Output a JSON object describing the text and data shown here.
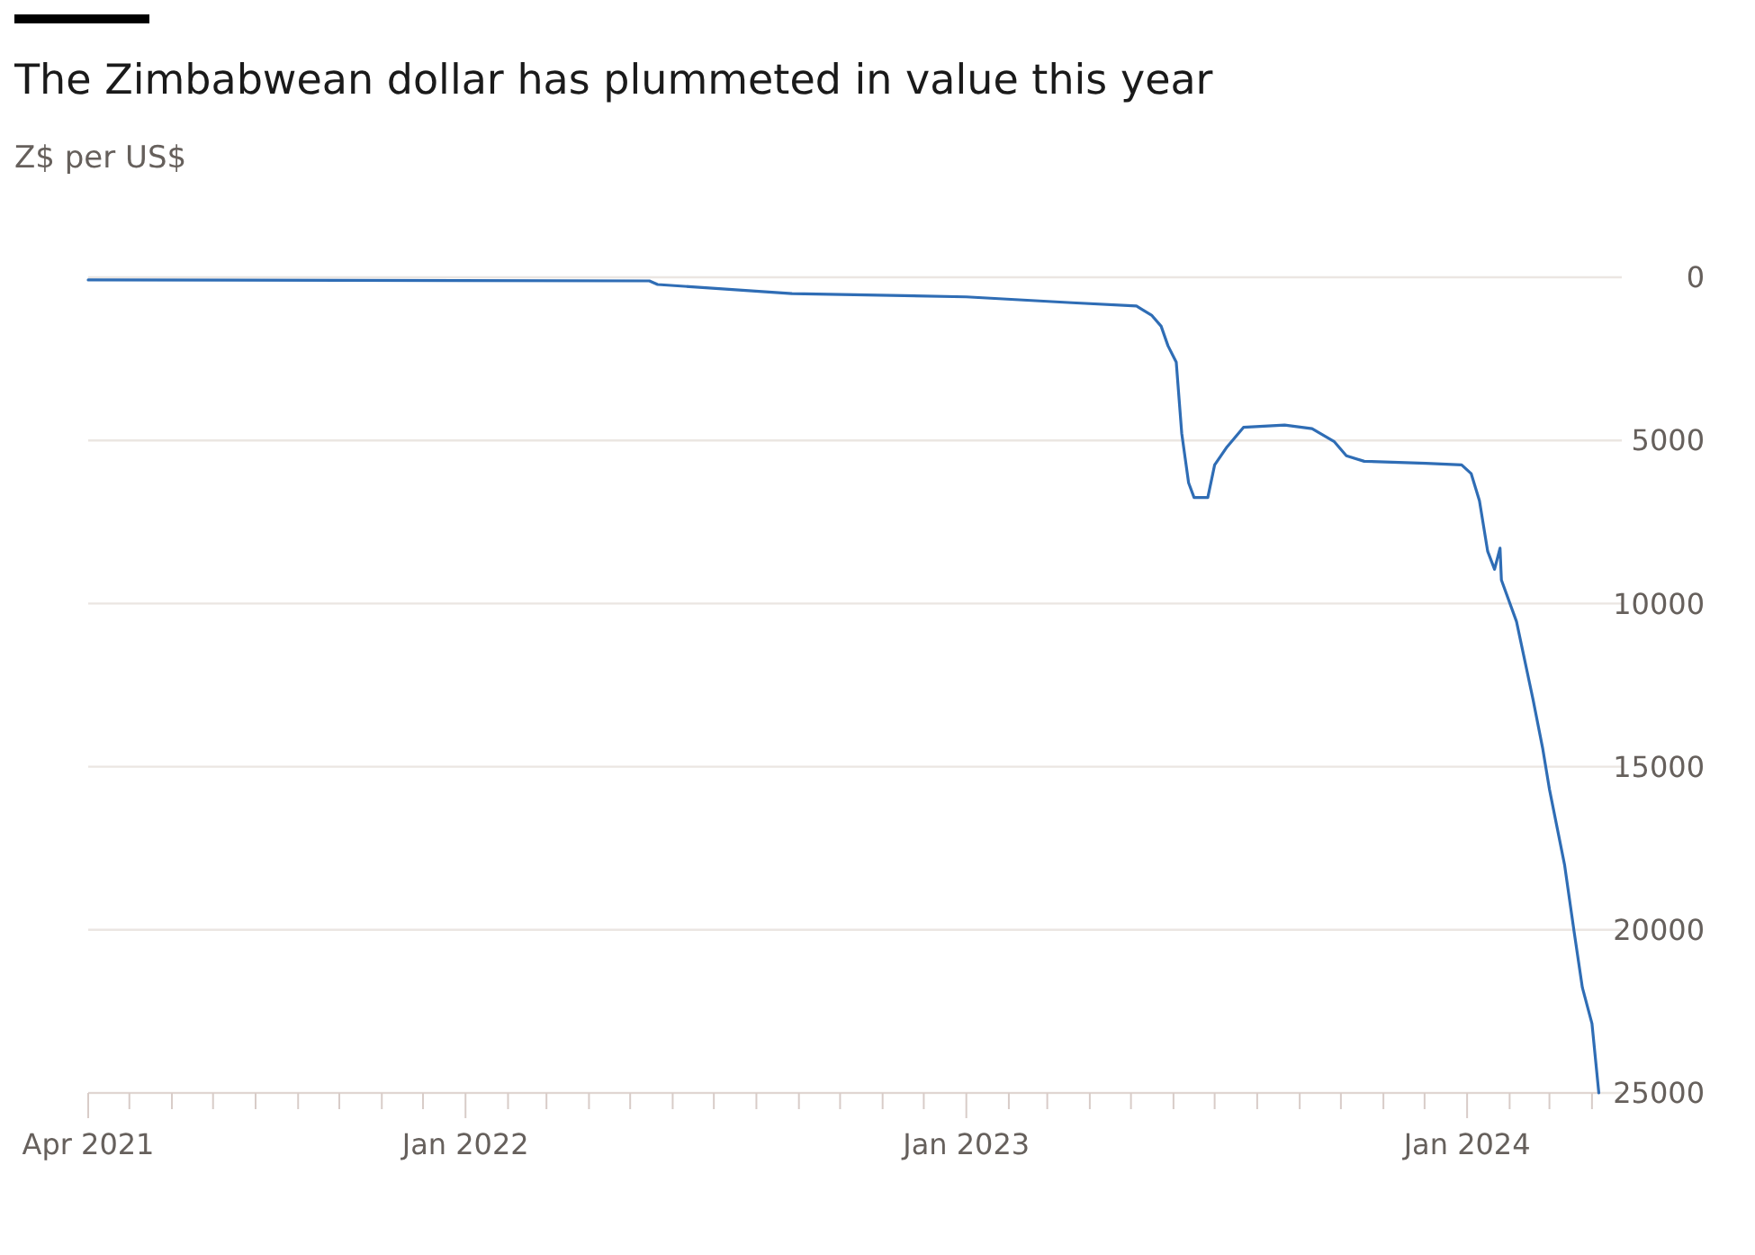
{
  "chart_data": {
    "type": "line",
    "title": "The Zimbabwean dollar has plummeted in value this year",
    "subtitle": "Z$ per US$",
    "x": [
      "2021-04-01",
      "2022-05-15",
      "2022-05-21",
      "2022-08-27",
      "2023-01-01",
      "2023-03-19",
      "2023-05-05",
      "2023-05-16",
      "2023-05-23",
      "2023-05-28",
      "2023-06-03",
      "2023-06-07",
      "2023-06-12",
      "2023-06-16",
      "2023-06-26",
      "2023-07-01",
      "2023-07-10",
      "2023-07-22",
      "2023-08-21",
      "2023-09-10",
      "2023-09-26",
      "2023-10-05",
      "2023-10-18",
      "2023-12-02",
      "2023-12-28",
      "2024-01-04",
      "2024-01-10",
      "2024-01-16",
      "2024-01-21",
      "2024-01-25",
      "2024-01-26",
      "2024-02-06",
      "2024-02-18",
      "2024-02-25",
      "2024-03-01",
      "2024-03-12",
      "2024-03-19",
      "2024-03-25",
      "2024-04-01",
      "2024-04-06"
    ],
    "series": [
      {
        "color": "#2f6db5",
        "values": [
          80,
          110,
          220,
          500,
          600,
          780,
          880,
          1160,
          1500,
          2100,
          2600,
          4780,
          6300,
          6750,
          6750,
          5750,
          5200,
          4600,
          4530,
          4640,
          5030,
          5470,
          5640,
          5700,
          5750,
          6020,
          6850,
          8400,
          8950,
          8300,
          9280,
          10550,
          12930,
          14420,
          15690,
          18000,
          20060,
          21770,
          22870,
          25000
        ]
      }
    ],
    "xlim": [
      "2021-04-01",
      "2024-04-07"
    ],
    "xticks": [
      {
        "value": "2021-04-01",
        "label": "Apr 2021"
      },
      {
        "value": "2021-05-01",
        "label": null
      },
      {
        "value": "2021-06-01",
        "label": null
      },
      {
        "value": "2021-07-01",
        "label": null
      },
      {
        "value": "2021-08-01",
        "label": null
      },
      {
        "value": "2021-09-01",
        "label": null
      },
      {
        "value": "2021-10-01",
        "label": null
      },
      {
        "value": "2021-11-01",
        "label": null
      },
      {
        "value": "2021-12-01",
        "label": null
      },
      {
        "value": "2022-01-01",
        "label": "Jan 2022"
      },
      {
        "value": "2022-02-01",
        "label": null
      },
      {
        "value": "2022-03-01",
        "label": null
      },
      {
        "value": "2022-04-01",
        "label": null
      },
      {
        "value": "2022-05-01",
        "label": null
      },
      {
        "value": "2022-06-01",
        "label": null
      },
      {
        "value": "2022-07-01",
        "label": null
      },
      {
        "value": "2022-08-01",
        "label": null
      },
      {
        "value": "2022-09-01",
        "label": null
      },
      {
        "value": "2022-10-01",
        "label": null
      },
      {
        "value": "2022-11-01",
        "label": null
      },
      {
        "value": "2022-12-01",
        "label": null
      },
      {
        "value": "2023-01-01",
        "label": "Jan 2023"
      },
      {
        "value": "2023-02-01",
        "label": null
      },
      {
        "value": "2023-03-01",
        "label": null
      },
      {
        "value": "2023-04-01",
        "label": null
      },
      {
        "value": "2023-05-01",
        "label": null
      },
      {
        "value": "2023-06-01",
        "label": null
      },
      {
        "value": "2023-07-01",
        "label": null
      },
      {
        "value": "2023-08-01",
        "label": null
      },
      {
        "value": "2023-09-01",
        "label": null
      },
      {
        "value": "2023-10-01",
        "label": null
      },
      {
        "value": "2023-11-01",
        "label": null
      },
      {
        "value": "2023-12-01",
        "label": null
      },
      {
        "value": "2024-01-01",
        "label": "Jan 2024"
      },
      {
        "value": "2024-02-01",
        "label": null
      },
      {
        "value": "2024-03-01",
        "label": null
      },
      {
        "value": "2024-04-01",
        "label": null
      }
    ],
    "ylim": [
      25000,
      0
    ],
    "yticks": [
      0,
      5000,
      10000,
      15000,
      20000,
      25000
    ],
    "grid": "y",
    "line_style": "solid"
  }
}
